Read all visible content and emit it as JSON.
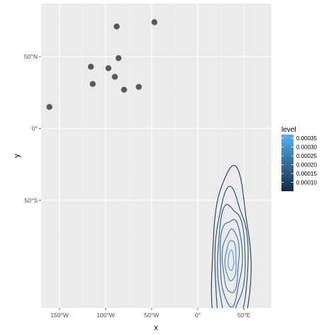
{
  "chart_data": {
    "type": "scatter",
    "title": "",
    "xlabel": "x",
    "ylabel": "y",
    "xlim": [
      -170,
      80
    ],
    "ylim": [
      -125,
      87
    ],
    "x_ticks": [
      {
        "value": -150,
        "label": "150°W"
      },
      {
        "value": -100,
        "label": "100°W"
      },
      {
        "value": -50,
        "label": "50°W"
      },
      {
        "value": 0,
        "label": "0°"
      },
      {
        "value": 50,
        "label": "50°E"
      }
    ],
    "y_ticks": [
      {
        "value": 50,
        "label": "50°N"
      },
      {
        "value": 0,
        "label": "0°"
      },
      {
        "value": -50,
        "label": "50°S"
      }
    ],
    "grid": true,
    "points": [
      {
        "x": -47,
        "y": 74
      },
      {
        "x": -88,
        "y": 71
      },
      {
        "x": -86,
        "y": 49
      },
      {
        "x": -116,
        "y": 43
      },
      {
        "x": -97,
        "y": 42
      },
      {
        "x": -90,
        "y": 36
      },
      {
        "x": -114,
        "y": 31
      },
      {
        "x": -64,
        "y": 29
      },
      {
        "x": -80,
        "y": 27
      },
      {
        "x": -161,
        "y": 15
      }
    ],
    "density_contours": {
      "center": {
        "x": 36,
        "y": -92
      },
      "levels": [
        {
          "level": 5e-05,
          "rx": 21,
          "ry": 62,
          "color": "#1e3a55"
        },
        {
          "level": 0.0001,
          "rx": 18,
          "ry": 48,
          "color": "#1f4568"
        },
        {
          "level": 0.00015,
          "rx": 15,
          "ry": 39,
          "color": "#245380"
        },
        {
          "level": 0.0002,
          "rx": 12,
          "ry": 30,
          "color": "#2b6397"
        },
        {
          "level": 0.00025,
          "rx": 9,
          "ry": 22,
          "color": "#3474ad"
        },
        {
          "level": 0.0003,
          "rx": 6,
          "ry": 14,
          "color": "#3e86c6"
        },
        {
          "level": 0.00035,
          "rx": 3,
          "ry": 7,
          "color": "#4a98dc"
        }
      ]
    },
    "legend": {
      "title": "level",
      "placement": "right",
      "range": [
        5e-05,
        0.00037
      ],
      "colors": [
        "#132b43",
        "#56b1f7"
      ],
      "labels": [
        {
          "value": 0.00035,
          "label": "0.00035"
        },
        {
          "value": 0.0003,
          "label": "0.00030"
        },
        {
          "value": 0.00025,
          "label": "0.00025"
        },
        {
          "value": 0.0002,
          "label": "0.00020"
        },
        {
          "value": 0.00015,
          "label": "0.00015"
        },
        {
          "value": 0.0001,
          "label": "0.00010"
        }
      ]
    }
  }
}
